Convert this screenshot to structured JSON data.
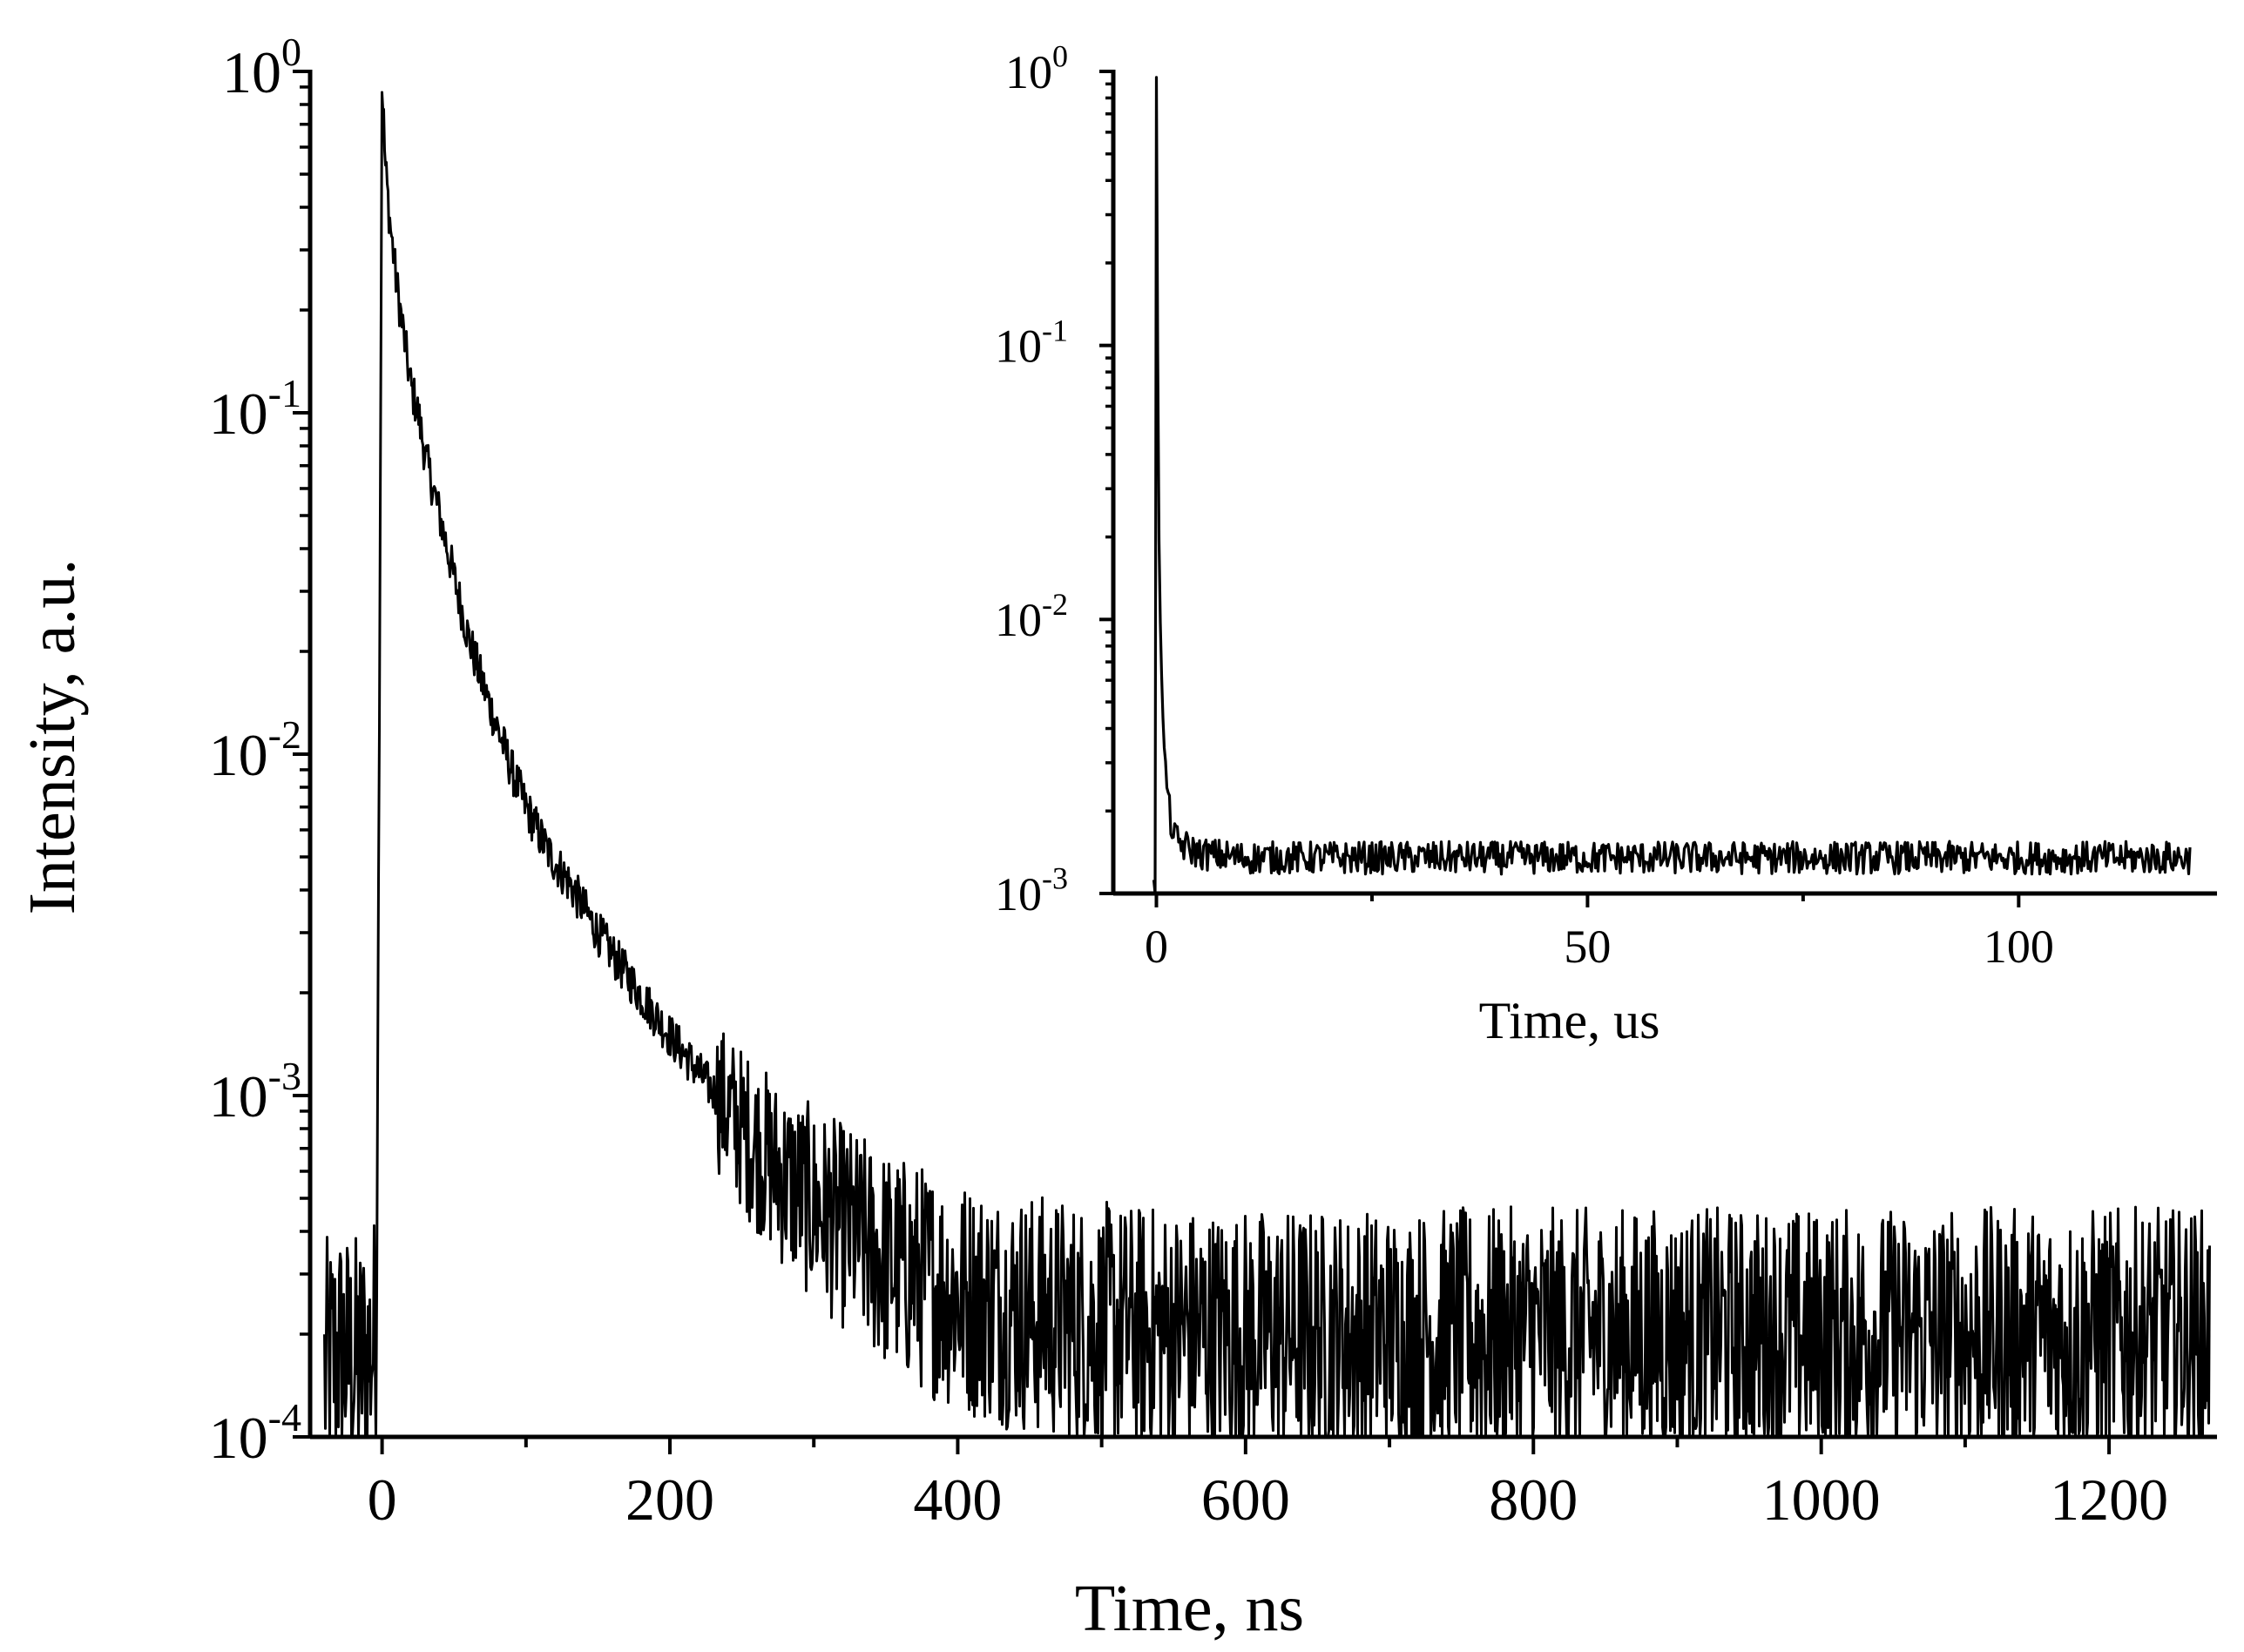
{
  "chart_data": [
    {
      "type": "line",
      "role": "main",
      "xlabel": "Time, ns",
      "ylabel": "Intensity, a.u.",
      "xlim": [
        -50,
        1275
      ],
      "ylim": [
        0.0001,
        1
      ],
      "yscale": "log",
      "grid": false,
      "legend": "none",
      "line_color": "#000000",
      "x_ticks": [
        0,
        200,
        400,
        600,
        800,
        1000,
        1200
      ],
      "x_tick_labels": [
        "0",
        "200",
        "400",
        "600",
        "800",
        "1000",
        "1200"
      ],
      "y_ticks": [
        {
          "value": 1,
          "base": "10",
          "exp": "0"
        },
        {
          "value": 0.1,
          "base": "10",
          "exp": "-1"
        },
        {
          "value": 0.01,
          "base": "10",
          "exp": "-2"
        },
        {
          "value": 0.001,
          "base": "10",
          "exp": "-3"
        },
        {
          "value": 0.0001,
          "base": "10",
          "exp": "-4"
        }
      ],
      "series": [
        {
          "x": [
            -40,
            -30,
            -20,
            -10,
            -4,
            -2,
            0,
            2,
            5,
            10,
            15,
            20,
            25,
            30,
            40,
            50,
            60,
            70,
            80,
            90,
            100,
            115,
            130,
            150,
            175,
            200,
            225,
            250,
            275,
            300,
            325,
            350,
            400,
            450,
            500,
            600,
            700,
            800,
            900,
            1000,
            1100,
            1200,
            1270
          ],
          "y": [
            0.00015,
            0.00018,
            0.00016,
            0.00017,
            0.0002,
            0.01,
            1.0,
            0.55,
            0.38,
            0.24,
            0.17,
            0.12,
            0.1,
            0.075,
            0.05,
            0.033,
            0.022,
            0.016,
            0.012,
            0.009,
            0.007,
            0.0052,
            0.0042,
            0.003,
            0.0021,
            0.0015,
            0.0011,
            0.0008,
            0.0006,
            0.00048,
            0.0004,
            0.00033,
            0.00026,
            0.00023,
            0.00021,
            0.0002,
            0.0002,
            0.0002,
            0.0002,
            0.0002,
            0.0002,
            0.0002,
            0.0002
          ]
        }
      ]
    },
    {
      "type": "line",
      "role": "inset",
      "xlabel": "Time, us",
      "ylabel": "",
      "xlim": [
        -5,
        123
      ],
      "ylim": [
        0.001,
        1
      ],
      "yscale": "log",
      "grid": false,
      "legend": "none",
      "line_color": "#000000",
      "x_ticks": [
        0,
        50,
        100
      ],
      "x_tick_labels": [
        "0",
        "50",
        "100"
      ],
      "y_ticks": [
        {
          "value": 1,
          "base": "10",
          "exp": "0"
        },
        {
          "value": 0.1,
          "base": "10",
          "exp": "-1"
        },
        {
          "value": 0.01,
          "base": "10",
          "exp": "-2"
        },
        {
          "value": 0.001,
          "base": "10",
          "exp": "-3"
        }
      ],
      "series": [
        {
          "x": [
            -0.3,
            -0.1,
            0,
            0.1,
            0.2,
            0.3,
            0.5,
            0.8,
            1,
            1.5,
            2,
            3,
            5,
            10,
            30,
            60,
            90,
            120
          ],
          "y": [
            0.001,
            0.001,
            1.0,
            0.2,
            0.05,
            0.02,
            0.008,
            0.004,
            0.003,
            0.002,
            0.0016,
            0.0015,
            0.0014,
            0.00135,
            0.00135,
            0.00135,
            0.00135,
            0.00135
          ]
        }
      ]
    }
  ]
}
